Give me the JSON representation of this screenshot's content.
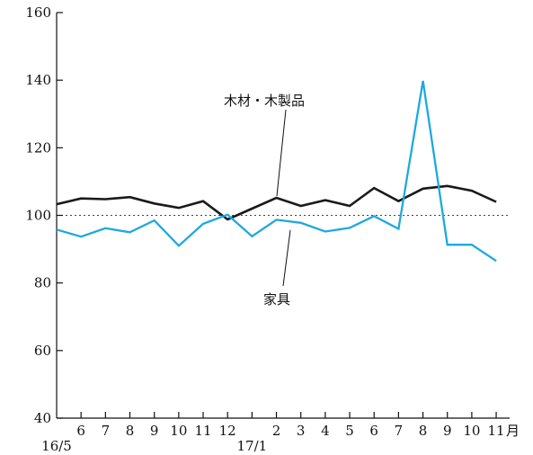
{
  "chart_data": {
    "type": "line",
    "categories": [
      "16/5",
      "6",
      "7",
      "8",
      "9",
      "10",
      "11",
      "12",
      "17/1",
      "2",
      "3",
      "4",
      "5",
      "6",
      "7",
      "8",
      "9",
      "10",
      "11"
    ],
    "x_tick_labels": [
      "",
      "6",
      "7",
      "8",
      "9",
      "10",
      "11",
      "12",
      "",
      "2",
      "3",
      "4",
      "5",
      "6",
      "7",
      "8",
      "9",
      "10",
      "11"
    ],
    "x_year_labels": [
      {
        "index": 0,
        "text": "16/5"
      },
      {
        "index": 8,
        "text": "17/1"
      }
    ],
    "x_unit": "月",
    "ylim": [
      40,
      160
    ],
    "yticks": [
      40,
      60,
      80,
      100,
      120,
      140,
      160
    ],
    "reference_line": 100,
    "grid": false,
    "series": [
      {
        "name": "木材・木製品",
        "color": "#1a1a1a",
        "values": [
          103.3,
          105.0,
          104.8,
          105.4,
          103.5,
          102.2,
          104.2,
          98.8,
          102.0,
          105.2,
          102.8,
          104.5,
          102.8,
          108.1,
          104.2,
          107.9,
          108.7,
          107.3,
          104.0
        ]
      },
      {
        "name": "家具",
        "color": "#1ea8e0",
        "values": [
          95.8,
          93.7,
          96.2,
          95.0,
          98.5,
          91.0,
          97.5,
          100.2,
          93.8,
          98.7,
          97.8,
          95.2,
          96.3,
          99.8,
          96.0,
          139.8,
          91.3,
          91.3,
          86.5
        ]
      }
    ]
  }
}
